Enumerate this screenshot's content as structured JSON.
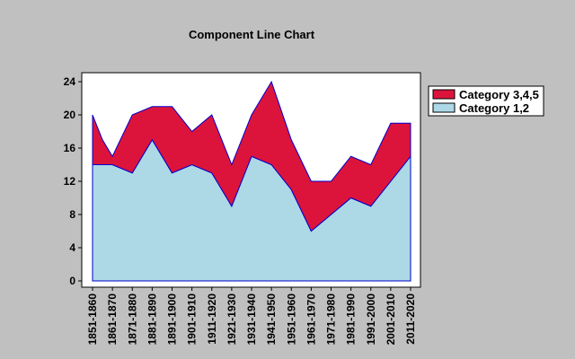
{
  "chart_data": {
    "type": "area",
    "title": "Component Line Chart",
    "xlabel": "",
    "ylabel": "",
    "stacked": true,
    "ylim": [
      0,
      24
    ],
    "yticks": [
      0,
      4,
      8,
      12,
      16,
      20,
      24
    ],
    "grid": false,
    "legend_position": "right",
    "categories": [
      "1851-1860",
      "1861-1870",
      "1871-1880",
      "1881-1890",
      "1891-1900",
      "1901-1910",
      "1911-1920",
      "1921-1930",
      "1931-1940",
      "1941-1950",
      "1951-1960",
      "1961-1970",
      "1971-1980",
      "1981-1990",
      "1991-2000",
      "2001-2010",
      "2011-2020"
    ],
    "x_positions": [
      1,
      2,
      3,
      4,
      5,
      6,
      7,
      8,
      9,
      10,
      11,
      12,
      13,
      14,
      15,
      16,
      17
    ],
    "x": [
      1,
      1.5,
      2,
      3,
      4,
      5,
      6,
      7,
      8,
      9,
      10,
      11,
      12,
      13,
      14,
      15,
      16,
      17
    ],
    "series": [
      {
        "name": "Category 1,2",
        "color": "#add8e6",
        "values": [
          14,
          14,
          14,
          13,
          17,
          13,
          14,
          13,
          9,
          15,
          14,
          11,
          6,
          8,
          10,
          9,
          12,
          15
        ]
      },
      {
        "name": "Category 3,4,5",
        "color": "#dc143c",
        "values": [
          6,
          3,
          1,
          7,
          4,
          8,
          4,
          7,
          5,
          5,
          10,
          6,
          6,
          4,
          5,
          5,
          7,
          4
        ]
      }
    ],
    "totals": [
      20,
      17,
      15,
      20,
      21,
      21,
      18,
      20,
      14,
      20,
      24,
      17,
      12,
      12,
      15,
      14,
      19,
      19
    ],
    "outline_color": "#0000cd",
    "plot_background": "#ffffff"
  }
}
